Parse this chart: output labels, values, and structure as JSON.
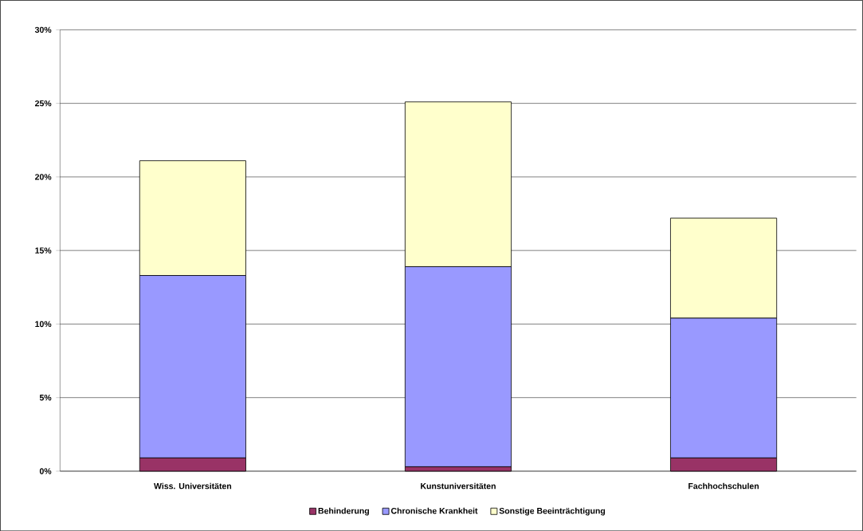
{
  "chart_data": {
    "type": "bar",
    "stacked": true,
    "categories": [
      "Wiss. Universitäten",
      "Kunstuniversitäten",
      "Fachhochschulen"
    ],
    "series": [
      {
        "name": "Behinderung",
        "color": "#993366",
        "values": [
          0.9,
          0.3,
          0.9
        ]
      },
      {
        "name": "Chronische Krankheit",
        "color": "#9999ff",
        "values": [
          12.4,
          13.6,
          9.5
        ]
      },
      {
        "name": "Sonstige Beeinträchtigung",
        "color": "#ffffcc",
        "values": [
          7.8,
          11.2,
          6.8
        ]
      }
    ],
    "ylim": [
      0,
      30
    ],
    "yticks": [
      {
        "value": 0,
        "label": "0%"
      },
      {
        "value": 5,
        "label": "5%"
      },
      {
        "value": 10,
        "label": "10%"
      },
      {
        "value": 15,
        "label": "15%"
      },
      {
        "value": 20,
        "label": "20%"
      },
      {
        "value": 25,
        "label": "25%"
      },
      {
        "value": 30,
        "label": "30%"
      }
    ],
    "grid": "y",
    "legend": "bottom"
  }
}
